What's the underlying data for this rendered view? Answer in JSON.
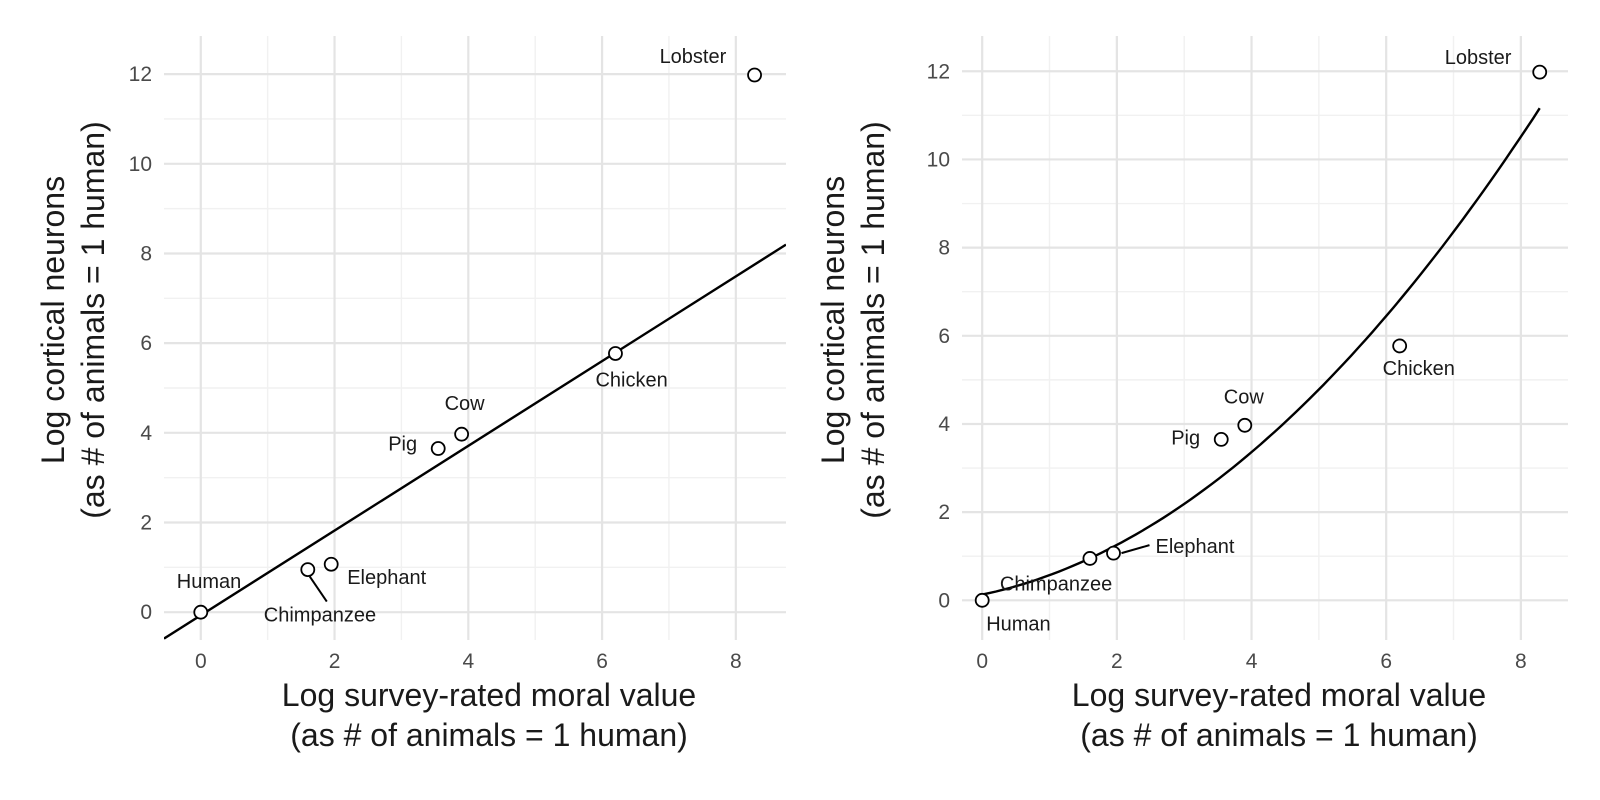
{
  "chart_data": [
    {
      "type": "scatter",
      "panel": "left",
      "fit": "linear",
      "xlabel": [
        "Log survey-rated moral value",
        "(as # of animals = 1 human)"
      ],
      "ylabel": [
        "Log cortical neurons",
        "(as # of animals = 1 human)"
      ],
      "xlim": [
        -0.55,
        8.75
      ],
      "ylim": [
        -0.62,
        12.85
      ],
      "xticks": [
        0,
        2,
        4,
        6,
        8
      ],
      "yticks": [
        0,
        2,
        4,
        6,
        8,
        10,
        12
      ],
      "fit_line": {
        "slope": 0.945,
        "intercept": -0.07
      },
      "points": [
        {
          "label": "Human",
          "x": 0.0,
          "y": 0.0,
          "label_pos": "top-left"
        },
        {
          "label": "Chimpanzee",
          "x": 1.6,
          "y": 0.95,
          "label_pos": "below-leader"
        },
        {
          "label": "Elephant",
          "x": 1.95,
          "y": 1.07,
          "label_pos": "below-right"
        },
        {
          "label": "Pig",
          "x": 3.55,
          "y": 3.65,
          "label_pos": "left"
        },
        {
          "label": "Cow",
          "x": 3.9,
          "y": 3.97,
          "label_pos": "top"
        },
        {
          "label": "Chicken",
          "x": 6.2,
          "y": 5.77,
          "label_pos": "below"
        },
        {
          "label": "Lobster",
          "x": 8.28,
          "y": 11.98,
          "label_pos": "top-left"
        }
      ]
    },
    {
      "type": "scatter",
      "panel": "right",
      "fit": "curve",
      "xlabel": [
        "Log survey-rated moral value",
        "(as # of animals = 1 human)"
      ],
      "ylabel": [
        "Log cortical neurons",
        "(as # of animals = 1 human)"
      ],
      "xlim": [
        -0.3,
        8.7
      ],
      "ylim": [
        -0.9,
        12.8
      ],
      "xticks": [
        0,
        2,
        4,
        6,
        8
      ],
      "yticks": [
        0,
        2,
        4,
        6,
        8,
        10,
        12
      ],
      "fit_curve": {
        "a": 0.13,
        "b": 0.318,
        "c": 0.1225
      },
      "points": [
        {
          "label": "Human",
          "x": 0.0,
          "y": 0.0,
          "label_pos": "below-right"
        },
        {
          "label": "Chimpanzee",
          "x": 1.6,
          "y": 0.95,
          "label_pos": "left-below"
        },
        {
          "label": "Elephant",
          "x": 1.95,
          "y": 1.07,
          "label_pos": "right-leader"
        },
        {
          "label": "Pig",
          "x": 3.55,
          "y": 3.65,
          "label_pos": "left"
        },
        {
          "label": "Cow",
          "x": 3.9,
          "y": 3.97,
          "label_pos": "top"
        },
        {
          "label": "Chicken",
          "x": 6.2,
          "y": 5.77,
          "label_pos": "below"
        },
        {
          "label": "Lobster",
          "x": 8.28,
          "y": 11.98,
          "label_pos": "left"
        }
      ]
    }
  ]
}
